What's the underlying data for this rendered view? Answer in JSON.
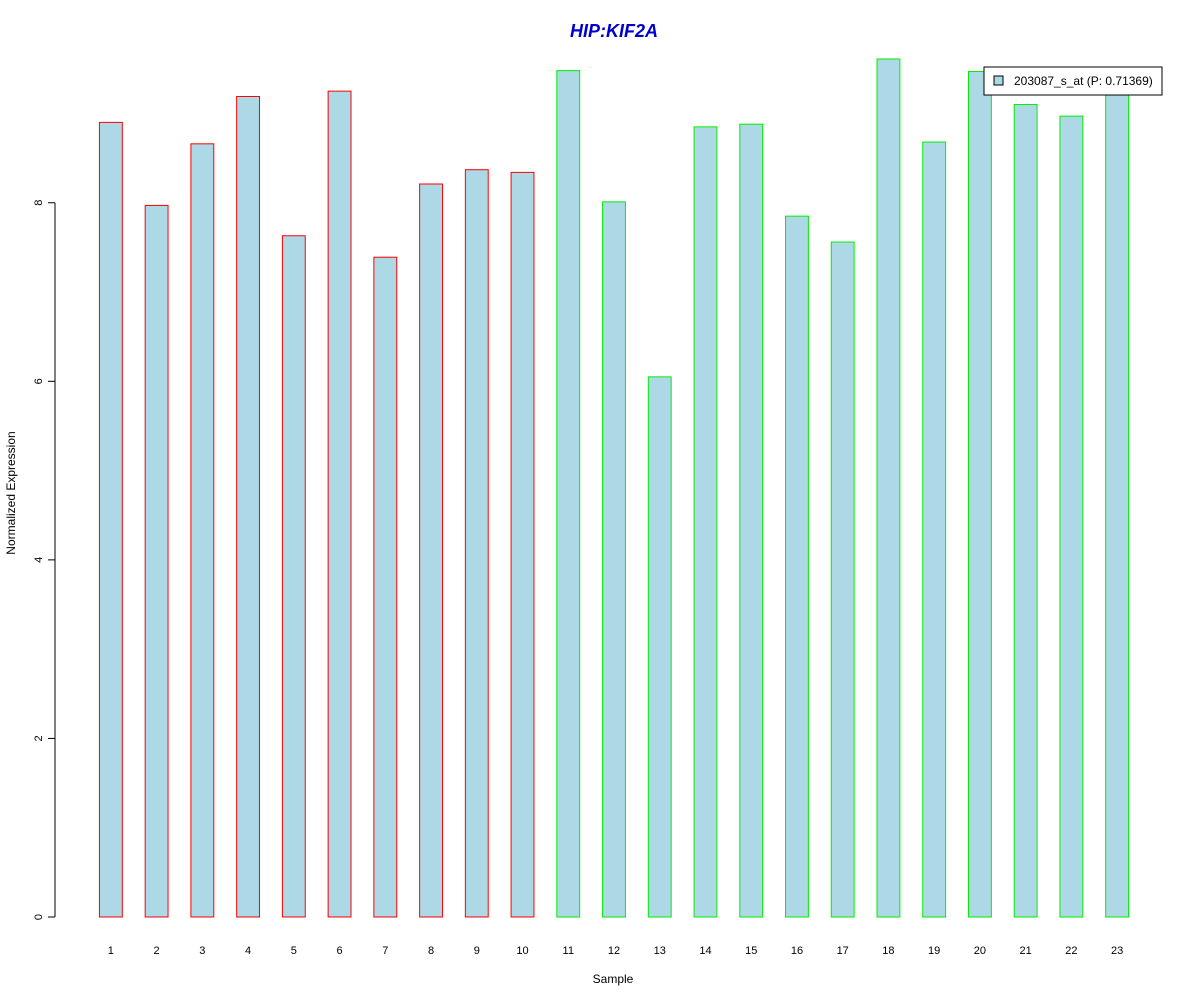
{
  "chart_data": {
    "type": "bar",
    "title": "HIP:KIF2A",
    "xlabel": "Sample",
    "ylabel": "Normalized Expression",
    "categories": [
      "1",
      "2",
      "3",
      "4",
      "5",
      "6",
      "7",
      "8",
      "9",
      "10",
      "11",
      "12",
      "13",
      "14",
      "15",
      "16",
      "17",
      "18",
      "19",
      "20",
      "21",
      "22",
      "23"
    ],
    "series": [
      {
        "name": "203087_s_at (P: 0.71369)",
        "values": [
          8.9,
          7.97,
          8.66,
          9.19,
          7.63,
          9.25,
          7.39,
          8.21,
          8.37,
          8.34,
          9.48,
          8.01,
          6.05,
          8.85,
          8.88,
          7.85,
          7.56,
          9.61,
          8.68,
          9.47,
          9.1,
          8.97,
          9.3
        ],
        "fill": "#add8e6",
        "border_colors": [
          "#ff0000",
          "#ff0000",
          "#ff0000",
          "#ff0000",
          "#ff0000",
          "#ff0000",
          "#ff0000",
          "#ff0000",
          "#ff0000",
          "#ff0000",
          "#00ee00",
          "#00ee00",
          "#00ee00",
          "#00ee00",
          "#00ee00",
          "#00ee00",
          "#00ee00",
          "#00ee00",
          "#00ee00",
          "#00ee00",
          "#00ee00",
          "#00ee00",
          "#00ee00"
        ]
      }
    ],
    "yticks": [
      0,
      2,
      4,
      6,
      8
    ],
    "ylim": [
      0,
      9.61
    ],
    "grid": false,
    "legend": {
      "position": "top-right"
    },
    "colors": {
      "title": "#0000cc",
      "axis": "#000000"
    }
  }
}
